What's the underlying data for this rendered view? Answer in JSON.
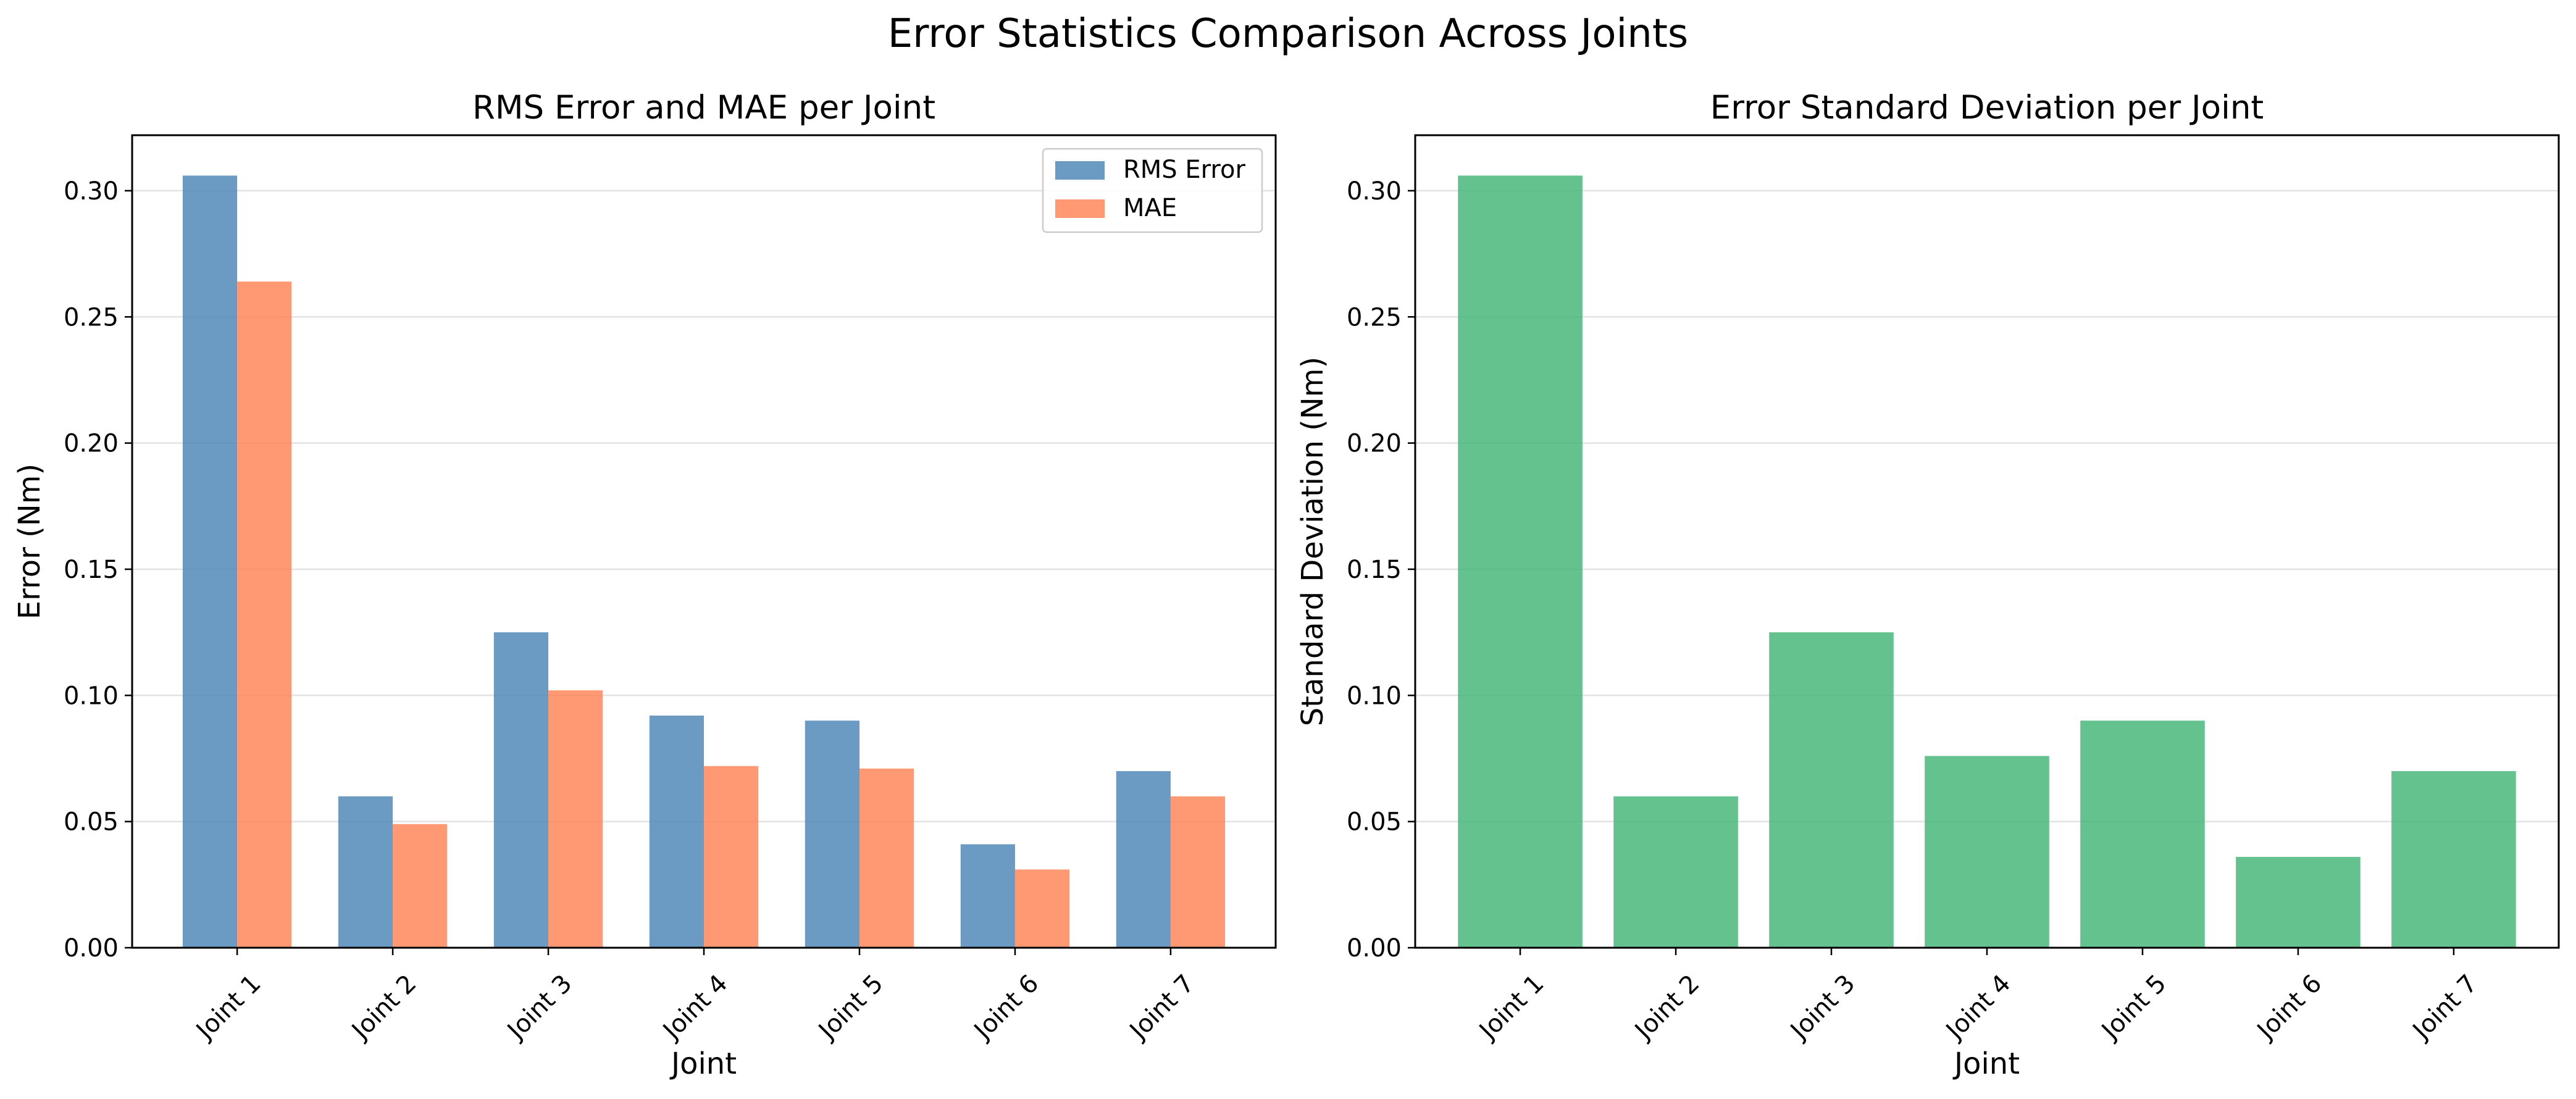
{
  "figure": {
    "title": "Error Statistics Comparison Across Joints"
  },
  "chart_data": [
    {
      "type": "bar",
      "title": "RMS Error and MAE per Joint",
      "xlabel": "Joint",
      "ylabel": "Error (Nm)",
      "categories": [
        "Joint 1",
        "Joint 2",
        "Joint 3",
        "Joint 4",
        "Joint 5",
        "Joint 6",
        "Joint 7"
      ],
      "ylim": [
        0,
        0.322
      ],
      "yticks": [
        0.0,
        0.05,
        0.1,
        0.15,
        0.2,
        0.25,
        0.3
      ],
      "ytick_labels": [
        "0.00",
        "0.05",
        "0.10",
        "0.15",
        "0.20",
        "0.25",
        "0.30"
      ],
      "grid": "horizontal",
      "legend": "top-right",
      "series": [
        {
          "name": "RMS Error",
          "color": "#4682B4",
          "values": [
            0.306,
            0.06,
            0.125,
            0.092,
            0.09,
            0.041,
            0.07
          ]
        },
        {
          "name": "MAE",
          "color": "#FF7F50",
          "values": [
            0.264,
            0.049,
            0.102,
            0.072,
            0.071,
            0.031,
            0.06
          ]
        }
      ]
    },
    {
      "type": "bar",
      "title": "Error Standard Deviation per Joint",
      "xlabel": "Joint",
      "ylabel": "Standard Deviation (Nm)",
      "categories": [
        "Joint 1",
        "Joint 2",
        "Joint 3",
        "Joint 4",
        "Joint 5",
        "Joint 6",
        "Joint 7"
      ],
      "ylim": [
        0,
        0.322
      ],
      "yticks": [
        0.0,
        0.05,
        0.1,
        0.15,
        0.2,
        0.25,
        0.3
      ],
      "ytick_labels": [
        "0.00",
        "0.05",
        "0.10",
        "0.15",
        "0.20",
        "0.25",
        "0.30"
      ],
      "grid": "horizontal",
      "series": [
        {
          "color": "#3CB371",
          "values": [
            0.306,
            0.06,
            0.125,
            0.076,
            0.09,
            0.036,
            0.07
          ]
        }
      ]
    }
  ]
}
